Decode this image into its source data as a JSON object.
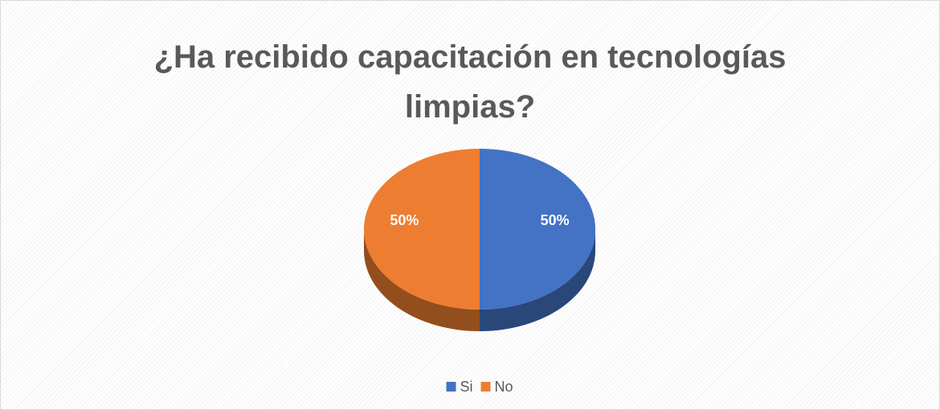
{
  "chart_data": {
    "type": "pie",
    "title": "¿Ha recibido capacitación en tecnologías limpias?",
    "categories": [
      "Si",
      "No"
    ],
    "values": [
      50,
      50
    ],
    "value_labels": [
      "50%",
      "50%"
    ],
    "colors": [
      "#4472c4",
      "#ed7d31"
    ],
    "legend": "bottom"
  }
}
